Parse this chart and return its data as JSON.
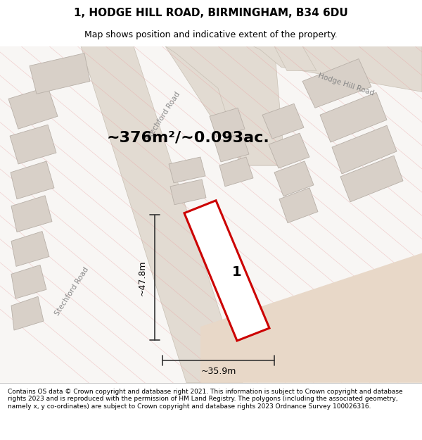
{
  "title_line1": "1, HODGE HILL ROAD, BIRMINGHAM, B34 6DU",
  "title_line2": "Map shows position and indicative extent of the property.",
  "area_text": "~376m²/~0.093ac.",
  "dim_vertical": "~47.8m",
  "dim_horizontal": "~35.9m",
  "label_number": "1",
  "footer_text": "Contains OS data © Crown copyright and database right 2021. This information is subject to Crown copyright and database rights 2023 and is reproduced with the permission of HM Land Registry. The polygons (including the associated geometry, namely x, y co-ordinates) are subject to Crown copyright and database rights 2023 Ordnance Survey 100026316.",
  "map_bg": "#ffffff",
  "road_color": "#e2dbd2",
  "road_edge": "#c8c0b4",
  "building_fill": "#d8d0c8",
  "building_edge": "#b8b0a8",
  "tan_patch_color": "#e8d8c8",
  "red_outline": "#cc0000",
  "gray_line": "#333333",
  "road_label_color": "#888888",
  "hatch_color": "#e8a0a0",
  "area_fontsize": 16,
  "title_fontsize1": 11,
  "title_fontsize2": 9,
  "footer_fontsize": 6.5,
  "dim_fontsize": 9,
  "road_label_fontsize": 7.5
}
